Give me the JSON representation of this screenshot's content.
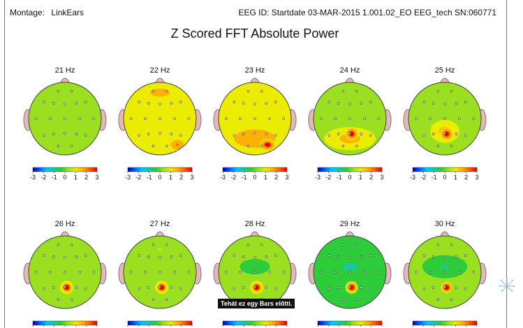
{
  "header": {
    "montage_label": "Montage:",
    "montage_value": "LinkEars",
    "eeg_id": "EEG ID:   Startdate 03-MAR-2015 1.001.02_EO EEG_tech SN:060771"
  },
  "caption": "Tehát ez egy Bars előtti.",
  "logo_icon": "dandelion-logo-icon",
  "chart_data": {
    "type": "heatmap",
    "title": "Z Scored FFT Absolute Power",
    "colorbar": {
      "ticks": [
        "-3",
        "-2",
        "-1",
        "0",
        "1",
        "2",
        "3"
      ],
      "range": [
        -3,
        3
      ],
      "colors": [
        "#0000b0",
        "#0060ff",
        "#00c8ff",
        "#18c89c",
        "#2ecc3a",
        "#9ae020",
        "#ecec00",
        "#ffb000",
        "#ff5a00",
        "#e00000"
      ]
    },
    "scalp_maps": [
      {
        "label": "21 Hz",
        "background_z": 0.3,
        "hotspots": [
          {
            "region": "left temporal",
            "z": 0.5
          }
        ]
      },
      {
        "label": "22 Hz",
        "background_z": 0.9,
        "hotspots": [
          {
            "region": "frontal",
            "z": 1.4
          },
          {
            "region": "right parietal-occipital",
            "z": 1.9
          }
        ]
      },
      {
        "label": "23 Hz",
        "background_z": 0.8,
        "hotspots": [
          {
            "region": "frontal",
            "z": 1.1
          },
          {
            "region": "posterior",
            "z": 1.7
          },
          {
            "region": "right occipital",
            "z": 2.8
          }
        ]
      },
      {
        "label": "24 Hz",
        "background_z": 0.3,
        "hotspots": [
          {
            "region": "posterior",
            "z": 1.4
          },
          {
            "region": "parietal-occipital midline",
            "z": 3.0
          }
        ]
      },
      {
        "label": "25 Hz",
        "background_z": 0.3,
        "hotspots": [
          {
            "region": "parietal",
            "z": 1.4
          },
          {
            "region": "parietal-occipital midline",
            "z": 3.0
          }
        ]
      },
      {
        "label": "26 Hz",
        "background_z": 0.2,
        "hotspots": [
          {
            "region": "parietal-occipital midline",
            "z": 3.0
          }
        ]
      },
      {
        "label": "27 Hz",
        "background_z": 0.2,
        "hotspots": [
          {
            "region": "frontal midline",
            "z": 0.6
          },
          {
            "region": "parietal-occipital midline",
            "z": 3.0
          }
        ]
      },
      {
        "label": "28 Hz",
        "background_z": 0.2,
        "hotspots": [
          {
            "region": "central",
            "z": -0.4
          },
          {
            "region": "parietal-occipital midline",
            "z": 3.0
          }
        ]
      },
      {
        "label": "29 Hz",
        "background_z": -0.1,
        "hotspots": [
          {
            "region": "central",
            "z": -0.8
          },
          {
            "region": "parietal-occipital midline",
            "z": 3.0
          }
        ]
      },
      {
        "label": "30 Hz",
        "background_z": 0.1,
        "hotspots": [
          {
            "region": "central",
            "z": -0.6
          },
          {
            "region": "parietal-occipital midline",
            "z": 3.0
          }
        ]
      }
    ]
  }
}
